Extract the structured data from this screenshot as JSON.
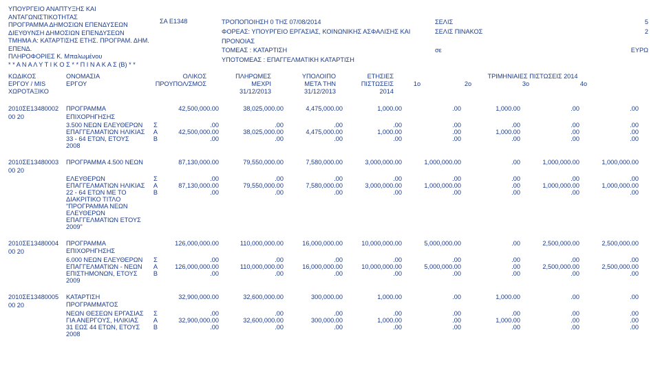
{
  "text_color": "#1a3a8a",
  "background_color": "#ffffff",
  "font_family": "Arial, Helvetica, sans-serif",
  "font_size_pt": 7,
  "header": {
    "org1": "ΥΠΟΥΡΓΕΙΟ ΑΝΑΠΤΥΞΗΣ ΚΑΙ",
    "org2": "ΑΝΤΑΓΩΝΙΣΤΙΚΟΤΗΤΑΣ",
    "org3": "ΠΡΟΓΡΑΜΜΑ ΔΗΜΟΣΙΩΝ ΕΠΕΝΔΥΣΕΩΝ",
    "org4": "ΔΙΕΥΘΥΝΣΗ ΔΗΜΟΣΙΩΝ ΕΠΕΝΔΥΣΕΩΝ",
    "org5": "ΤΜΗΜΑ  Α: ΚΑΤΑΡΤΙΣΗΣ ΕΤΗΣ. ΠΡΟΓΡΑΜ. ΔΗΜ. ΕΠΕΝΔ.",
    "org6": "ΠΛΗΡΟΦΟΡΙΕΣ Κ. Μπαλωμένου",
    "org7": "* *  Α Ν Α Λ Υ Τ Ι Κ Ο Σ  * *  Π Ι Ν Α Κ Α Σ  (Β)  * *",
    "sa": "ΣΑ  Ε1348",
    "tropo": "ΤΡΟΠΟΠΟΙΗΣΗ  0       ΤΗΣ  07/08/2014",
    "foreas": "ΦΟΡΕΑΣ:  ΥΠΟΥΡΓΕΙΟ ΕΡΓΑΣΙΑΣ, ΚΟΙΝΩΝΙΚΗΣ  ΑΣΦΑΛΙΣΗΣ  ΚΑΙ  ΠΡΟΝΟΙΑΣ",
    "tomeas": "ΤΟΜΕΑΣ : ΚΑΤΑΡΤΙΣΗ",
    "ypotomeas": "ΥΠΟΤΟΜΕΑΣ :  ΕΠΑΓΓΕΛΜΑΤΙΚΗ ΚΑΤΑΡΤΙΣΗ",
    "selis": "ΣΕΛΙΣ",
    "selis_n": "5",
    "selis_pin": "ΣΕΛΙΣ ΠΙΝΑΚΟΣ",
    "selis_pin_n": "2",
    "se": "σε",
    "euro": "ΕΥΡΩ"
  },
  "colhdr": {
    "c1a": "ΚΩΔΙΚΟΣ",
    "c1b": "ΕΡΓΟΥ / MIS",
    "c1c": "ΧΩΡΟΤΑΞΙΚΟ",
    "c2a": "ΟΝΟΜΑΣΙΑ",
    "c2b": "ΕΡΓΟΥ",
    "c3a": "ΟΛΙΚΟΣ",
    "c3b": "ΠΡΟΥΠΟΛ/ΣΜΟΣ",
    "c4a": "ΠΛΗΡΩΜΕΣ",
    "c4b": "ΜΕΧΡΙ",
    "c4c": "31/12/2013",
    "c5a": "ΥΠΟΛΟΙΠΟ",
    "c5b": "ΜΕΤΑ ΤΗΝ",
    "c5c": "31/12/2013",
    "c6a": "ΕΤΗΣΙΕΣ",
    "c6b": "ΠΙΣΤΩΣΕΙΣ",
    "c6c": "2014",
    "tri": "ΤΡΙΜΗΝΙΑΙΕΣ ΠΙΣΤΩΣΕΙΣ  2014",
    "q1": "1ο",
    "q2": "2ο",
    "q3": "3ο",
    "q4": "4ο"
  },
  "rows": [
    {
      "code": "2010ΣΕ13480002",
      "sub": "00 20",
      "title": "ΠΡΟΓΡΑΜΜΑ ΕΠΙΧΟΡΗΓΗΣΗΣ 3.500 ΝΕΩΝ ΕΛΕΥΘΕΡΩΝ ΕΠΑΓΓΕΛΜΑΤΙΩΝ ΗΛΙΚΙΑΣ 33 - 64 ΕΤΩΝ, ΕΤΟΥΣ 2008",
      "top": [
        "42,500,000.00",
        "38,025,000.00",
        "4,475,000.00",
        "1,000.00",
        ".00",
        "1,000.00",
        ".00",
        ".00"
      ],
      "S": [
        ".00",
        ".00",
        ".00",
        ".00",
        ".00",
        ".00",
        ".00",
        ".00"
      ],
      "A": [
        "42,500,000.00",
        "38,025,000.00",
        "4,475,000.00",
        "1,000.00",
        ".00",
        "1,000.00",
        ".00",
        ".00"
      ],
      "B": [
        ".00",
        ".00",
        ".00",
        ".00",
        ".00",
        ".00",
        ".00",
        ".00"
      ]
    },
    {
      "code": "2010ΣΕ13480003",
      "sub": "00 20",
      "title": "ΠΡΟΓΡΑΜΜΑ 4.500 ΝΕΩΝ ΕΛΕΥΘΕΡΩΝ ΕΠΑΓΓΕΛΜΑΤΙΩΝ ΗΛΙΚΙΑΣ 22 - 64 ΕΤΩΝ ΜΕ ΤΟ ΔΙΑΚΡΙΤΙΚΟ ΤΙΤΛΟ \"ΠΡΟΓΡΑΜΜΑ ΝΕΩΝ ΕΛΕΥΘΕΡΩΝ ΕΠΑΓΓΕΛΜΑΤΙΩΝ ΕΤΟΥΣ 2009\"",
      "top": [
        "87,130,000.00",
        "79,550,000.00",
        "7,580,000.00",
        "3,000,000.00",
        "1,000,000.00",
        ".00",
        "1,000,000.00",
        "1,000,000.00"
      ],
      "S": [
        ".00",
        ".00",
        ".00",
        ".00",
        ".00",
        ".00",
        ".00",
        ".00"
      ],
      "A": [
        "87,130,000.00",
        "79,550,000.00",
        "7,580,000.00",
        "3,000,000.00",
        "1,000,000.00",
        ".00",
        "1,000,000.00",
        "1,000,000.00"
      ],
      "B": [
        ".00",
        ".00",
        ".00",
        ".00",
        ".00",
        ".00",
        ".00",
        ".00"
      ]
    },
    {
      "code": "2010ΣΕ13480004",
      "sub": "00 20",
      "title": "ΠΡΟΓΡΑΜΜΑ ΕΠΙΧΟΡΗΓΗΣΗΣ 6.000 ΝΕΩΝ ΕΛΕΥΘΕΡΩΝ ΕΠΑΓΓΕΛΜΑΤΙΩΝ  - ΝΕΩΝ ΕΠΙΣΤΗΜΟΝΩΝ, ΕΤΟΥΣ 2009",
      "top": [
        "126,000,000.00",
        "110,000,000.00",
        "16,000,000.00",
        "10,000,000.00",
        "5,000,000.00",
        ".00",
        "2,500,000.00",
        "2,500,000.00"
      ],
      "S": [
        ".00",
        ".00",
        ".00",
        ".00",
        ".00",
        ".00",
        ".00",
        ".00"
      ],
      "A": [
        "126,000,000.00",
        "110,000,000.00",
        "16,000,000.00",
        "10,000,000.00",
        "5,000,000.00",
        ".00",
        "2,500,000.00",
        "2,500,000.00"
      ],
      "B": [
        ".00",
        ".00",
        ".00",
        ".00",
        ".00",
        ".00",
        ".00",
        ".00"
      ]
    },
    {
      "code": "2010ΣΕ13480005",
      "sub": "00 20",
      "title": "ΚΑΤΑΡΤΙΣΗ ΠΡΟΓΡΑΜΜΑΤΟΣ ΝΕΩΝ ΘΕΣΕΩΝ ΕΡΓΑΣΙΑΣ ΓΙΑ ΑΝΕΡΓΟΥΣ, ΗΛΙΚΙΑΣ  31 ΕΩΣ 44 ΕΤΩΝ, ΕΤΟΥΣ 2008",
      "top": [
        "32,900,000.00",
        "32,600,000.00",
        "300,000.00",
        "1,000.00",
        ".00",
        "1,000.00",
        ".00",
        ".00"
      ],
      "S": [
        ".00",
        ".00",
        ".00",
        ".00",
        ".00",
        ".00",
        ".00",
        ".00"
      ],
      "A": [
        "32,900,000.00",
        "32,600,000.00",
        "300,000.00",
        "1,000.00",
        ".00",
        "1,000.00",
        ".00",
        ".00"
      ],
      "B": [
        ".00",
        ".00",
        ".00",
        ".00",
        ".00",
        ".00",
        ".00",
        ".00"
      ]
    }
  ],
  "flags": {
    "S": "Σ",
    "A": "Α",
    "B": "Β"
  }
}
